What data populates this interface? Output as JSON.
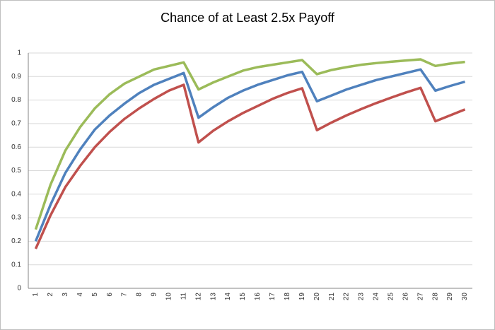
{
  "chart_data": {
    "type": "line",
    "title": "Chance of at Least 2.5x Payoff",
    "categories": [
      1,
      2,
      3,
      4,
      5,
      6,
      7,
      8,
      9,
      10,
      11,
      12,
      13,
      14,
      15,
      16,
      17,
      18,
      19,
      20,
      21,
      22,
      23,
      24,
      25,
      26,
      27,
      28,
      29,
      30
    ],
    "series": [
      {
        "color": "#9bbb59",
        "values": [
          0.25,
          0.44,
          0.585,
          0.685,
          0.765,
          0.825,
          0.87,
          0.9,
          0.93,
          0.945,
          0.96,
          0.845,
          0.875,
          0.9,
          0.925,
          0.94,
          0.95,
          0.96,
          0.97,
          0.91,
          0.928,
          0.94,
          0.95,
          0.957,
          0.963,
          0.968,
          0.973,
          0.945,
          0.955,
          0.962
        ]
      },
      {
        "color": "#4f81bd",
        "values": [
          0.2,
          0.355,
          0.49,
          0.59,
          0.675,
          0.735,
          0.785,
          0.83,
          0.865,
          0.89,
          0.915,
          0.725,
          0.77,
          0.81,
          0.84,
          0.865,
          0.885,
          0.905,
          0.92,
          0.795,
          0.82,
          0.845,
          0.865,
          0.885,
          0.9,
          0.915,
          0.93,
          0.84,
          0.86,
          0.878
        ]
      },
      {
        "color": "#c0504d",
        "values": [
          0.168,
          0.31,
          0.43,
          0.52,
          0.6,
          0.665,
          0.72,
          0.765,
          0.805,
          0.84,
          0.865,
          0.62,
          0.67,
          0.71,
          0.745,
          0.775,
          0.805,
          0.83,
          0.85,
          0.672,
          0.705,
          0.735,
          0.762,
          0.787,
          0.81,
          0.832,
          0.852,
          0.71,
          0.735,
          0.76
        ]
      }
    ],
    "ylim": [
      0,
      1
    ],
    "yticks": [
      0,
      0.1,
      0.2,
      0.3,
      0.4,
      0.5,
      0.6,
      0.7,
      0.8,
      0.9,
      1
    ],
    "grid": true
  }
}
